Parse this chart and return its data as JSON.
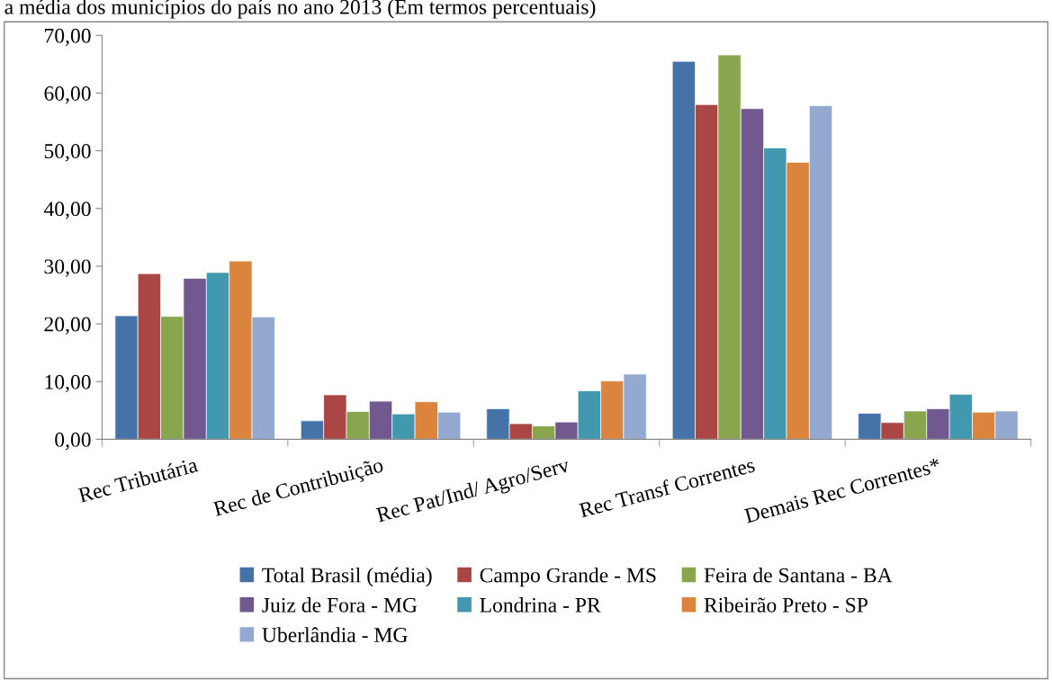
{
  "chart_data": {
    "type": "bar",
    "title": "a média dos municípios do país no ano 2013 (Em termos percentuais)",
    "categories": [
      "Rec Tributária",
      "Rec de Contribuição",
      "Rec Pat/Ind/ Agro/Serv",
      "Rec Transf Correntes",
      "Demais Rec Correntes*"
    ],
    "series": [
      {
        "name": "Total Brasil (média)",
        "color": "#4572a7",
        "values": [
          21.4,
          3.2,
          5.3,
          65.5,
          4.5
        ]
      },
      {
        "name": "Campo Grande - MS",
        "color": "#aa4643",
        "values": [
          28.7,
          7.7,
          2.7,
          58.0,
          2.9
        ]
      },
      {
        "name": "Feira de Santana - BA",
        "color": "#89a54e",
        "values": [
          21.3,
          4.8,
          2.3,
          66.6,
          4.9
        ]
      },
      {
        "name": "Juiz de Fora - MG",
        "color": "#71588f",
        "values": [
          27.9,
          6.6,
          3.0,
          57.3,
          5.3
        ]
      },
      {
        "name": "Londrina - PR",
        "color": "#4198af",
        "values": [
          28.9,
          4.4,
          8.4,
          50.5,
          7.8
        ]
      },
      {
        "name": "Ribeirão Preto - SP",
        "color": "#db843d",
        "values": [
          30.9,
          6.5,
          10.1,
          48.0,
          4.7
        ]
      },
      {
        "name": "Uberlândia - MG",
        "color": "#93a9cf",
        "values": [
          21.2,
          4.7,
          11.3,
          57.8,
          4.9
        ]
      }
    ],
    "ylim": [
      0,
      70
    ],
    "yticks": [
      {
        "value": 0,
        "label": "0,00"
      },
      {
        "value": 10,
        "label": "10,00"
      },
      {
        "value": 20,
        "label": "20,00"
      },
      {
        "value": 30,
        "label": "30,00"
      },
      {
        "value": 40,
        "label": "40,00"
      },
      {
        "value": 50,
        "label": "50,00"
      },
      {
        "value": 60,
        "label": "60,00"
      },
      {
        "value": 70,
        "label": "70,00"
      }
    ],
    "grid": false,
    "legend": "bottom"
  }
}
